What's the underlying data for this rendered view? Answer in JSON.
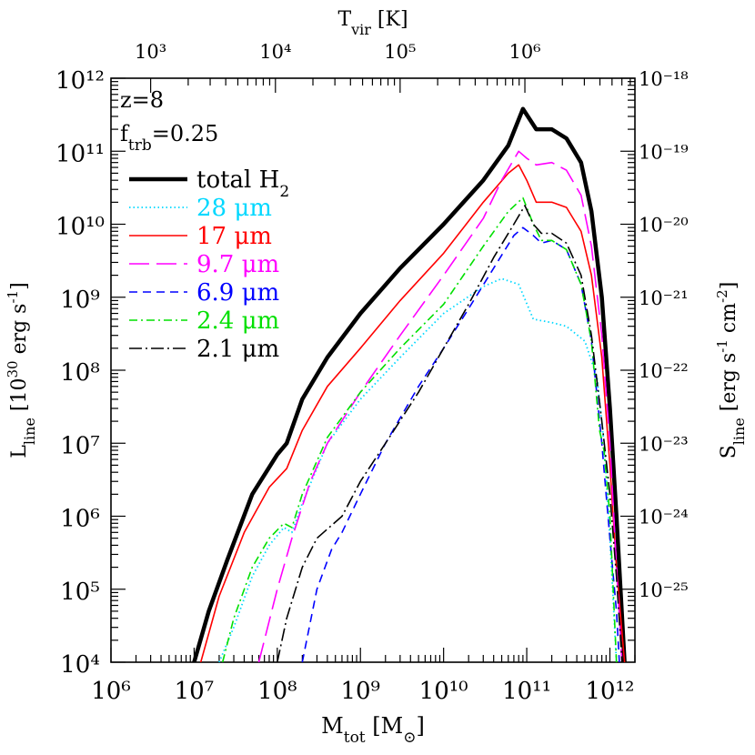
{
  "chart_data": {
    "type": "line",
    "x_scale": "log",
    "y_scale": "log",
    "xlim": [
      1000000.0,
      2000000000000.0
    ],
    "ylim": [
      10000.0,
      1000000000000.0
    ],
    "xlabel": {
      "main": "M",
      "sub": "tot",
      "unit": "[M",
      "unit_sub": "⊙",
      "unit_close": "]"
    },
    "ylabel": {
      "main": "L",
      "sub": "line",
      "unit": "[10",
      "unit_sup": "30",
      "unit_rest": " erg s",
      "unit_sup2": "-1",
      "unit_close": "]"
    },
    "top_axis": {
      "label_main": "T",
      "label_sub": "vir",
      "label_unit": "[K]",
      "ticks": [
        {
          "label": "10³",
          "mass": 3000000.0
        },
        {
          "label": "10⁴",
          "mass": 95000000.0
        },
        {
          "label": "10⁵",
          "mass": 3000000000.0
        },
        {
          "label": "10⁶",
          "mass": 95000000000.0
        }
      ]
    },
    "right_axis": {
      "label_main": "S",
      "label_sub": "line",
      "label_unit": "[erg s",
      "label_sup": "-1",
      "label_mid": " cm",
      "label_sup2": "-2",
      "label_close": "]",
      "ticks": [
        {
          "label": "10⁻¹⁸",
          "L": 1000000000000.0
        },
        {
          "label": "10⁻¹⁹",
          "L": 100000000000.0
        },
        {
          "label": "10⁻²⁰",
          "L": 10000000000.0
        },
        {
          "label": "10⁻²¹",
          "L": 1000000000.0
        },
        {
          "label": "10⁻²²",
          "L": 100000000.0
        },
        {
          "label": "10⁻²³",
          "L": 10000000.0
        },
        {
          "label": "10⁻²⁴",
          "L": 1000000.0
        },
        {
          "label": "10⁻²⁵",
          "L": 100000.0
        }
      ]
    },
    "x_ticks": [
      {
        "label": "10⁶",
        "value": 1000000.0
      },
      {
        "label": "10⁷",
        "value": 10000000.0
      },
      {
        "label": "10⁸",
        "value": 100000000.0
      },
      {
        "label": "10⁹",
        "value": 1000000000.0
      },
      {
        "label": "10¹⁰",
        "value": 10000000000.0
      },
      {
        "label": "10¹¹",
        "value": 100000000000.0
      },
      {
        "label": "10¹²",
        "value": 1000000000000.0
      }
    ],
    "y_ticks": [
      {
        "label": "10⁴",
        "value": 10000.0
      },
      {
        "label": "10⁵",
        "value": 100000.0
      },
      {
        "label": "10⁶",
        "value": 1000000.0
      },
      {
        "label": "10⁷",
        "value": 10000000.0
      },
      {
        "label": "10⁸",
        "value": 100000000.0
      },
      {
        "label": "10⁹",
        "value": 1000000000.0
      },
      {
        "label": "10¹⁰",
        "value": 10000000000.0
      },
      {
        "label": "10¹¹",
        "value": 100000000000.0
      },
      {
        "label": "10¹²",
        "value": 1000000000000.0
      }
    ],
    "annotations": [
      {
        "text": "z=8"
      },
      {
        "text_main": "f",
        "text_sub": "trb",
        "text_rest": "=0.25"
      }
    ],
    "legend_position": "top-left",
    "series": [
      {
        "name": "total H",
        "name_sub": "2",
        "color": "#000000",
        "dash": "none",
        "width": 4.5,
        "points": [
          [
            10000000.0,
            10000.0
          ],
          [
            15000000.0,
            50000.0
          ],
          [
            25000000.0,
            250000.0
          ],
          [
            50000000.0,
            2000000.0
          ],
          [
            100000000.0,
            7000000.0
          ],
          [
            130000000.0,
            10000000.0
          ],
          [
            200000000.0,
            40000000.0
          ],
          [
            400000000.0,
            150000000.0
          ],
          [
            1000000000.0,
            600000000.0
          ],
          [
            3000000000.0,
            2500000000.0
          ],
          [
            10000000000.0,
            10000000000.0
          ],
          [
            30000000000.0,
            40000000000.0
          ],
          [
            60000000000.0,
            120000000000.0
          ],
          [
            90000000000.0,
            380000000000.0
          ],
          [
            130000000000.0,
            200000000000.0
          ],
          [
            200000000000.0,
            200000000000.0
          ],
          [
            300000000000.0,
            150000000000.0
          ],
          [
            450000000000.0,
            70000000000.0
          ],
          [
            600000000000.0,
            15000000000.0
          ],
          [
            800000000000.0,
            1000000000.0
          ],
          [
            1000000000000.0,
            30000000.0
          ],
          [
            1200000000000.0,
            1000000.0
          ],
          [
            1500000000000.0,
            10000.0
          ]
        ]
      },
      {
        "name": "28 ",
        "name_unit": "μm",
        "color": "#00d8ff",
        "dash": "1.5,3",
        "width": 1.8,
        "points": [
          [
            20000000.0,
            10000.0
          ],
          [
            30000000.0,
            30000.0
          ],
          [
            50000000.0,
            150000.0
          ],
          [
            80000000.0,
            400000.0
          ],
          [
            120000000.0,
            700000.0
          ],
          [
            150000000.0,
            600000.0
          ],
          [
            200000000.0,
            1500000.0
          ],
          [
            400000000.0,
            10000000.0
          ],
          [
            1000000000.0,
            40000000.0
          ],
          [
            3000000000.0,
            150000000.0
          ],
          [
            10000000000.0,
            600000000.0
          ],
          [
            30000000000.0,
            1400000000.0
          ],
          [
            50000000000.0,
            1800000000.0
          ],
          [
            80000000000.0,
            1500000000.0
          ],
          [
            120000000000.0,
            500000000.0
          ],
          [
            200000000000.0,
            450000000.0
          ],
          [
            300000000000.0,
            400000000.0
          ],
          [
            500000000000.0,
            250000000.0
          ],
          [
            700000000000.0,
            80000000.0
          ],
          [
            850000000000.0,
            10000000.0
          ],
          [
            1000000000000.0,
            500000.0
          ],
          [
            1200000000000.0,
            10000.0
          ]
        ]
      },
      {
        "name": "17 ",
        "name_unit": "μm",
        "color": "#ff0000",
        "dash": "none",
        "width": 1.6,
        "points": [
          [
            12000000.0,
            10000.0
          ],
          [
            20000000.0,
            80000.0
          ],
          [
            40000000.0,
            600000.0
          ],
          [
            80000000.0,
            2500000.0
          ],
          [
            130000000.0,
            4500000.0
          ],
          [
            200000000.0,
            15000000.0
          ],
          [
            400000000.0,
            60000000.0
          ],
          [
            1000000000.0,
            200000000.0
          ],
          [
            3000000000.0,
            900000000.0
          ],
          [
            10000000000.0,
            4000000000.0
          ],
          [
            30000000000.0,
            20000000000.0
          ],
          [
            60000000000.0,
            50000000000.0
          ],
          [
            80000000000.0,
            65000000000.0
          ],
          [
            100000000000.0,
            40000000000.0
          ],
          [
            130000000000.0,
            20000000000.0
          ],
          [
            200000000000.0,
            20000000000.0
          ],
          [
            300000000000.0,
            17000000000.0
          ],
          [
            450000000000.0,
            8000000000.0
          ],
          [
            600000000000.0,
            2000000000.0
          ],
          [
            800000000000.0,
            150000000.0
          ],
          [
            1000000000000.0,
            5000000.0
          ],
          [
            1200000000000.0,
            200000.0
          ],
          [
            1500000000000.0,
            10000.0
          ]
        ]
      },
      {
        "name": "9.7 ",
        "name_unit": "μm",
        "color": "#ff00ff",
        "dash": "22,8",
        "width": 1.6,
        "points": [
          [
            60000000.0,
            10000.0
          ],
          [
            100000000.0,
            100000.0
          ],
          [
            150000000.0,
            500000.0
          ],
          [
            250000000.0,
            3000000.0
          ],
          [
            400000000.0,
            10000000.0
          ],
          [
            1000000000.0,
            50000000.0
          ],
          [
            3000000000.0,
            300000000.0
          ],
          [
            10000000000.0,
            2000000000.0
          ],
          [
            30000000000.0,
            12000000000.0
          ],
          [
            50000000000.0,
            40000000000.0
          ],
          [
            80000000000.0,
            100000000000.0
          ],
          [
            100000000000.0,
            80000000000.0
          ],
          [
            130000000000.0,
            65000000000.0
          ],
          [
            200000000000.0,
            70000000000.0
          ],
          [
            300000000000.0,
            55000000000.0
          ],
          [
            450000000000.0,
            25000000000.0
          ],
          [
            600000000000.0,
            5000000000.0
          ],
          [
            800000000000.0,
            300000000.0
          ],
          [
            1000000000000.0,
            10000000.0
          ],
          [
            1200000000000.0,
            200000.0
          ],
          [
            1400000000000.0,
            10000.0
          ]
        ]
      },
      {
        "name": "6.9 ",
        "name_unit": "μm",
        "color": "#0000ff",
        "dash": "9,6",
        "width": 1.6,
        "points": [
          [
            200000000.0,
            10000.0
          ],
          [
            300000000.0,
            100000.0
          ],
          [
            450000000.0,
            350000.0
          ],
          [
            600000000.0,
            600000.0
          ],
          [
            1000000000.0,
            2000000.0
          ],
          [
            2000000000.0,
            10000000.0
          ],
          [
            5000000000.0,
            60000000.0
          ],
          [
            10000000000.0,
            200000000.0
          ],
          [
            20000000000.0,
            700000000.0
          ],
          [
            40000000000.0,
            2500000000.0
          ],
          [
            70000000000.0,
            7000000000.0
          ],
          [
            90000000000.0,
            9000000000.0
          ],
          [
            120000000000.0,
            7000000000.0
          ],
          [
            150000000000.0,
            5500000000.0
          ],
          [
            200000000000.0,
            6000000000.0
          ],
          [
            300000000000.0,
            4500000000.0
          ],
          [
            450000000000.0,
            1500000000.0
          ],
          [
            600000000000.0,
            250000000.0
          ],
          [
            800000000000.0,
            10000000.0
          ],
          [
            900000000000.0,
            2000000.0
          ],
          [
            1000000000000.0,
            500000.0
          ],
          [
            1200000000000.0,
            50000.0
          ],
          [
            1300000000000.0,
            10000.0
          ]
        ]
      },
      {
        "name": "2.4 ",
        "name_unit": "μm",
        "color": "#00e000",
        "dash": "9,4,2,4",
        "width": 1.6,
        "points": [
          [
            22000000.0,
            10000.0
          ],
          [
            30000000.0,
            40000.0
          ],
          [
            50000000.0,
            200000.0
          ],
          [
            80000000.0,
            500000.0
          ],
          [
            120000000.0,
            800000.0
          ],
          [
            150000000.0,
            700000.0
          ],
          [
            200000000.0,
            2000000.0
          ],
          [
            400000000.0,
            12000000.0
          ],
          [
            1000000000.0,
            50000000.0
          ],
          [
            3000000000.0,
            200000000.0
          ],
          [
            10000000000.0,
            800000000.0
          ],
          [
            30000000000.0,
            5000000000.0
          ],
          [
            60000000000.0,
            15000000000.0
          ],
          [
            90000000000.0,
            23000000000.0
          ],
          [
            120000000000.0,
            10000000000.0
          ],
          [
            150000000000.0,
            6000000000.0
          ],
          [
            200000000000.0,
            6000000000.0
          ],
          [
            300000000000.0,
            4500000000.0
          ],
          [
            450000000000.0,
            1500000000.0
          ],
          [
            600000000000.0,
            250000000.0
          ],
          [
            750000000000.0,
            15000000.0
          ],
          [
            850000000000.0,
            8000000.0
          ],
          [
            1000000000000.0,
            1000000.0
          ],
          [
            1200000000000.0,
            10000.0
          ]
        ]
      },
      {
        "name": "2.1 ",
        "name_unit": "μm",
        "color": "#000000",
        "dash": "14,4,2,4",
        "width": 1.6,
        "points": [
          [
            100000000.0,
            10000.0
          ],
          [
            130000000.0,
            40000.0
          ],
          [
            200000000.0,
            200000.0
          ],
          [
            300000000.0,
            500000.0
          ],
          [
            600000000.0,
            1000000.0
          ],
          [
            1000000000.0,
            3000000.0
          ],
          [
            2000000000.0,
            10000000.0
          ],
          [
            5000000000.0,
            50000000.0
          ],
          [
            10000000000.0,
            200000000.0
          ],
          [
            20000000000.0,
            800000000.0
          ],
          [
            40000000000.0,
            3500000000.0
          ],
          [
            70000000000.0,
            10000000000.0
          ],
          [
            95000000000.0,
            18000000000.0
          ],
          [
            120000000000.0,
            10000000000.0
          ],
          [
            150000000000.0,
            7500000000.0
          ],
          [
            200000000000.0,
            7500000000.0
          ],
          [
            300000000000.0,
            5500000000.0
          ],
          [
            450000000000.0,
            2000000000.0
          ],
          [
            600000000000.0,
            300000000.0
          ],
          [
            800000000000.0,
            20000000.0
          ],
          [
            1000000000000.0,
            2000000.0
          ],
          [
            1200000000000.0,
            150000.0
          ],
          [
            1400000000000.0,
            10000.0
          ]
        ]
      }
    ]
  }
}
